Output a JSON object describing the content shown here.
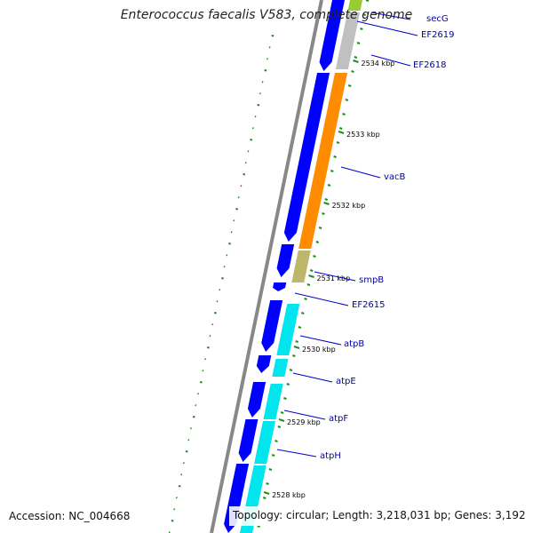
{
  "header": {
    "title": "Enterococcus faecalis V583, complete genome"
  },
  "footer": {
    "accession": "Accession: NC_004668",
    "topology": "Topology: circular; Length: 3,218,031 bp; Genes: 3,192"
  },
  "ticks": [
    {
      "label": "2534 kbp",
      "kbp": 2534
    },
    {
      "label": "2533 kbp",
      "kbp": 2533
    },
    {
      "label": "2532 kbp",
      "kbp": 2532
    },
    {
      "label": "2531 kbp",
      "kbp": 2531
    },
    {
      "label": "2530 kbp",
      "kbp": 2530
    },
    {
      "label": "2529 kbp",
      "kbp": 2529
    },
    {
      "label": "2528 kbp",
      "kbp": 2528
    }
  ],
  "genes": [
    {
      "name": "secG",
      "color": "#99cc33"
    },
    {
      "name": "EF2619",
      "color": "#c0c0c0"
    },
    {
      "name": "EF2618",
      "color": "#0000ff"
    },
    {
      "name": "vacB",
      "color": "#ff8c00"
    },
    {
      "name": "smpB",
      "color": "#bdb76b"
    },
    {
      "name": "EF2615",
      "color": "#0000ff"
    },
    {
      "name": "atpB",
      "color": "#00e5ee"
    },
    {
      "name": "atpE",
      "color": "#00e5ee"
    },
    {
      "name": "atpF",
      "color": "#00e5ee"
    },
    {
      "name": "atpH",
      "color": "#00e5ee"
    }
  ],
  "colors": {
    "cds_forward": "#0000ff",
    "cog_label_line": "#0000cc",
    "gc_skew": "#228b22",
    "backbone": "#888888"
  }
}
